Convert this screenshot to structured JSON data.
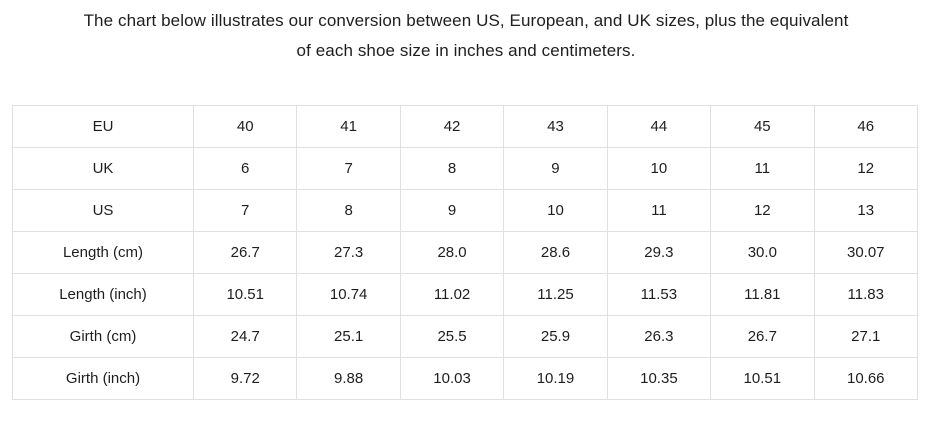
{
  "heading": {
    "line1": "The chart below illustrates our conversion between US, European, and UK sizes, plus the equivalent",
    "line2": "of each shoe size in inches and centimeters."
  },
  "table": {
    "rows": [
      {
        "label": "EU",
        "values": [
          "40",
          "41",
          "42",
          "43",
          "44",
          "45",
          "46"
        ]
      },
      {
        "label": "UK",
        "values": [
          "6",
          "7",
          "8",
          "9",
          "10",
          "11",
          "12"
        ]
      },
      {
        "label": "US",
        "values": [
          "7",
          "8",
          "9",
          "10",
          "11",
          "12",
          "13"
        ]
      },
      {
        "label": "Length (cm)",
        "values": [
          "26.7",
          "27.3",
          "28.0",
          "28.6",
          "29.3",
          "30.0",
          "30.07"
        ]
      },
      {
        "label": "Length (inch)",
        "values": [
          "10.51",
          "10.74",
          "11.02",
          "11.25",
          "11.53",
          "11.81",
          "11.83"
        ]
      },
      {
        "label": "Girth (cm)",
        "values": [
          "24.7",
          "25.1",
          "25.5",
          "25.9",
          "26.3",
          "26.7",
          "27.1"
        ]
      },
      {
        "label": "Girth (inch)",
        "values": [
          "9.72",
          "9.88",
          "10.03",
          "10.19",
          "10.35",
          "10.51",
          "10.66"
        ]
      }
    ]
  },
  "colors": {
    "background": "#ffffff",
    "text": "#1e1e1e",
    "table_border": "#e0e0e0"
  }
}
